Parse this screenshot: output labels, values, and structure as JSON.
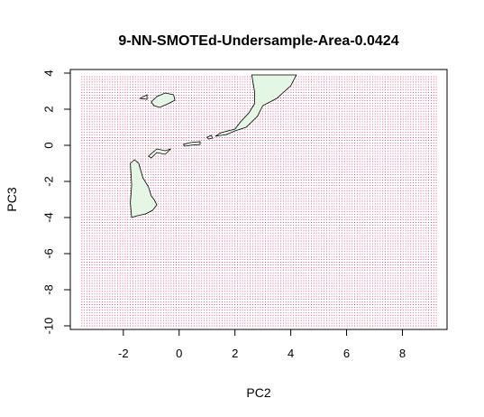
{
  "chart_data": {
    "type": "contour",
    "title": "9-NN-SMOTEd-Undersample-Area-0.0424",
    "xlabel": "PC2",
    "ylabel": "PC3",
    "xlim": [
      -3.9,
      9.6
    ],
    "ylim": [
      -10.2,
      4.2
    ],
    "xticks": [
      -2,
      0,
      2,
      4,
      6,
      8
    ],
    "yticks": [
      -10,
      -8,
      -6,
      -4,
      -2,
      0,
      2,
      4
    ],
    "grid_points": {
      "x_range": [
        -3.5,
        9.2
      ],
      "y_range": [
        -10.0,
        3.8
      ],
      "color": "#d4145a"
    },
    "contour_fill_color": "#e4f7e4",
    "contour_line_color": "#000000",
    "regions": [
      {
        "name": "upper-right-band",
        "points": [
          [
            2.6,
            3.9
          ],
          [
            4.2,
            3.9
          ],
          [
            4.0,
            3.3
          ],
          [
            3.5,
            2.6
          ],
          [
            3.0,
            2.2
          ],
          [
            2.8,
            1.6
          ],
          [
            2.4,
            1.0
          ],
          [
            2.0,
            0.8
          ],
          [
            1.7,
            0.6
          ],
          [
            1.3,
            0.5
          ],
          [
            1.5,
            0.7
          ],
          [
            2.0,
            0.9
          ],
          [
            2.2,
            1.3
          ],
          [
            2.5,
            1.8
          ],
          [
            2.7,
            2.3
          ],
          [
            2.7,
            3.0
          ]
        ]
      },
      {
        "name": "upper-left-blob",
        "points": [
          [
            -1.0,
            2.4
          ],
          [
            -0.8,
            2.7
          ],
          [
            -0.5,
            2.9
          ],
          [
            -0.2,
            2.8
          ],
          [
            -0.15,
            2.5
          ],
          [
            -0.4,
            2.3
          ],
          [
            -0.7,
            2.1
          ],
          [
            -0.9,
            2.2
          ]
        ]
      },
      {
        "name": "small-tick-upper",
        "points": [
          [
            -1.4,
            2.6
          ],
          [
            -1.15,
            2.8
          ],
          [
            -1.15,
            2.55
          ]
        ]
      },
      {
        "name": "left-vertical-strip",
        "points": [
          [
            -1.75,
            -1.0
          ],
          [
            -1.6,
            -0.8
          ],
          [
            -1.45,
            -1.0
          ],
          [
            -1.3,
            -1.8
          ],
          [
            -1.1,
            -2.3
          ],
          [
            -1.0,
            -2.8
          ],
          [
            -0.9,
            -3.0
          ],
          [
            -0.8,
            -3.3
          ],
          [
            -0.95,
            -3.6
          ],
          [
            -1.2,
            -3.8
          ],
          [
            -1.5,
            -3.9
          ],
          [
            -1.7,
            -4.0
          ],
          [
            -1.75,
            -3.2
          ],
          [
            -1.7,
            -2.2
          ]
        ]
      },
      {
        "name": "center-squiggle",
        "points": [
          [
            -1.1,
            -0.6
          ],
          [
            -0.8,
            -0.2
          ],
          [
            -0.5,
            -0.3
          ],
          [
            -0.3,
            -0.2
          ],
          [
            -0.5,
            -0.5
          ],
          [
            -0.8,
            -0.4
          ],
          [
            -1.0,
            -0.7
          ]
        ]
      },
      {
        "name": "center-dash",
        "points": [
          [
            0.15,
            0.05
          ],
          [
            0.4,
            0.15
          ],
          [
            0.75,
            0.2
          ],
          [
            0.75,
            0.05
          ],
          [
            0.4,
            0.0
          ],
          [
            0.2,
            -0.05
          ]
        ]
      },
      {
        "name": "tiny-dot-right",
        "points": [
          [
            1.0,
            0.45
          ],
          [
            1.15,
            0.55
          ],
          [
            1.2,
            0.4
          ],
          [
            1.05,
            0.35
          ]
        ]
      }
    ]
  }
}
